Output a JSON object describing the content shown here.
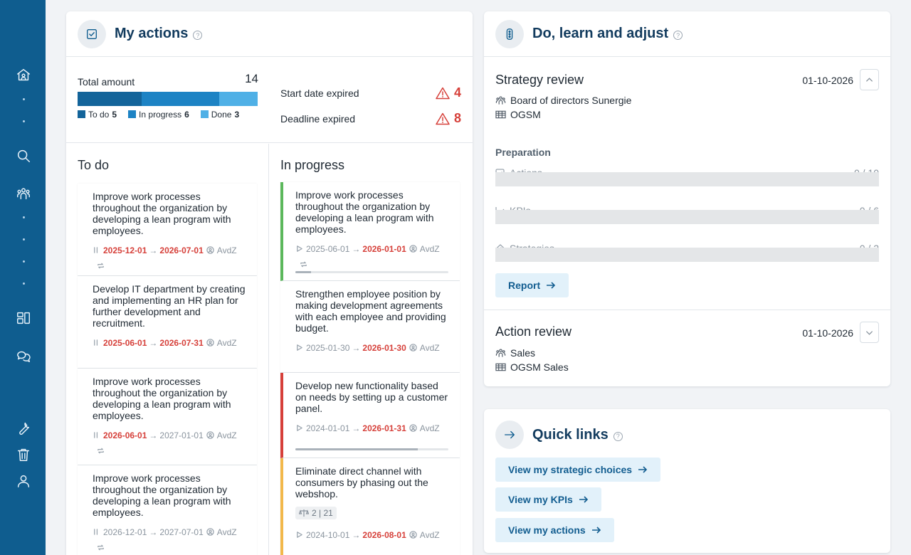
{
  "sidebar": {
    "icons": [
      "home-icon",
      "search-icon",
      "people-icon",
      "layout-icon",
      "chat-icon",
      "wrench-icon",
      "trash-icon",
      "user-icon"
    ]
  },
  "my_actions": {
    "title": "My actions",
    "total_label": "Total amount",
    "total_value": "14",
    "segments": [
      {
        "label": "To do",
        "count": "5",
        "value": 5,
        "color": "#13649a"
      },
      {
        "label": "In progress",
        "count": "6",
        "value": 6,
        "color": "#1d83c4"
      },
      {
        "label": "Done",
        "count": "3",
        "value": 3,
        "color": "#4fb0e6"
      }
    ],
    "start_expired_label": "Start date expired",
    "start_expired_value": "4",
    "deadline_expired_label": "Deadline expired",
    "deadline_expired_value": "8",
    "todo": {
      "title": "To do",
      "tasks": [
        {
          "title": "Improve work processes throughout the organization by developing a lean program with employees.",
          "start": "2025-12-01",
          "start_red": true,
          "end": "2026-07-01",
          "end_red": true,
          "owner": "AvdZ",
          "recurring": true
        },
        {
          "title": "Develop IT department by creating and implementing an HR plan for further development and recruitment.",
          "start": "2025-06-01",
          "start_red": true,
          "end": "2026-07-31",
          "end_red": true,
          "owner": "AvdZ",
          "recurring": false
        },
        {
          "title": "Improve work processes throughout the organization by developing a lean program with employees.",
          "start": "2026-06-01",
          "start_red": true,
          "end": "2027-01-01",
          "end_red": false,
          "owner": "AvdZ",
          "recurring": true
        },
        {
          "title": "Improve work processes throughout the organization by developing a lean program with employees.",
          "start": "2026-12-01",
          "start_red": false,
          "end": "2027-07-01",
          "end_red": false,
          "owner": "AvdZ",
          "recurring": true
        }
      ]
    },
    "in_progress": {
      "title": "In progress",
      "tasks": [
        {
          "title": "Improve work processes throughout the organization by developing a lean program with employees.",
          "start": "2025-06-01",
          "end": "2026-01-01",
          "owner": "AvdZ",
          "recurring": true,
          "progress": 0.1,
          "accent": "#5cb85c"
        },
        {
          "title": "Strengthen employee position by making development agreements with each employee and providing budget.",
          "start": "2025-01-30",
          "end": "2026-01-30",
          "owner": "AvdZ",
          "recurring": false,
          "progress": null,
          "accent": ""
        },
        {
          "title": "Develop new functionality based on needs by setting up a customer panel.",
          "start": "2024-01-01",
          "end": "2026-01-31",
          "owner": "AvdZ",
          "recurring": false,
          "progress": 0.8,
          "accent": "#d6403a"
        },
        {
          "title": "Eliminate direct channel with consumers by phasing out the webshop.",
          "badge": "2 | 21",
          "start": "2024-10-01",
          "end": "2026-08-01",
          "owner": "AvdZ",
          "recurring": false,
          "progress": null,
          "accent": "#f2b84b"
        }
      ]
    }
  },
  "dla": {
    "title": "Do, learn and adjust",
    "strategy_review": {
      "title": "Strategy review",
      "date": "01-10-2026",
      "team": "Board of directors Sunergie",
      "plan": "OGSM"
    },
    "preparation_title": "Preparation",
    "preparation": [
      {
        "label": "Actions",
        "count": "0 / 10"
      },
      {
        "label": "KPIs",
        "count": "0 / 6"
      },
      {
        "label": "Strategies",
        "count": "0 / 2"
      }
    ],
    "report_label": "Report",
    "action_review": {
      "title": "Action review",
      "date": "01-10-2026",
      "team": "Sales",
      "plan": "OGSM Sales"
    }
  },
  "quick_links": {
    "title": "Quick links",
    "links": [
      "View my strategic choices",
      "View my KPIs",
      "View my actions"
    ]
  }
}
